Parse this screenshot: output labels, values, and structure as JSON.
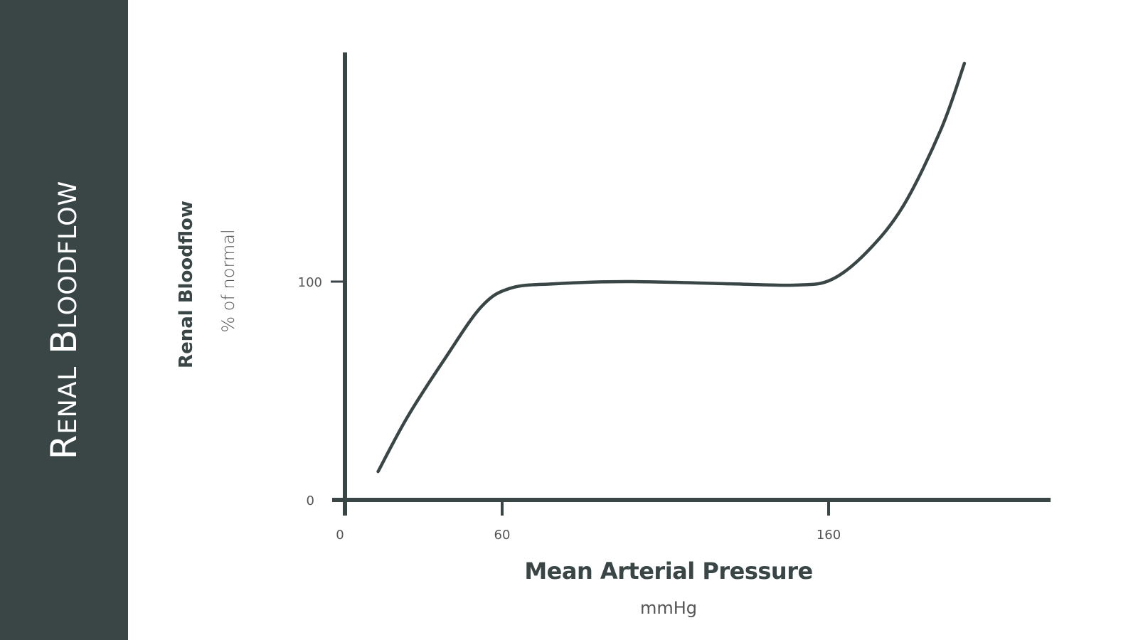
{
  "sidebar": {
    "title": "Renal Bloodflow",
    "color": "#3a4646"
  },
  "chart_data": {
    "type": "line",
    "xlabel": "Mean Arterial Pressure",
    "xunit": "mmHg",
    "ylabel": "Renal Bloodflow",
    "yunit": "% of normal",
    "xticks": [
      0,
      60,
      160
    ],
    "yticks": [
      0,
      100
    ],
    "xlim": [
      0,
      228
    ],
    "ylim": [
      0,
      205
    ],
    "grid": false,
    "line_color": "#3a4646",
    "series": [
      {
        "x": [
          22,
          31,
          42.6,
          53.7,
          62.6,
          76,
          98,
          130,
          150,
          161,
          172,
          183,
          194.5,
          201.6
        ],
        "y": [
          13,
          38,
          65,
          88.6,
          97,
          99,
          100,
          99,
          98.4,
          101,
          114,
          135,
          170,
          200
        ]
      }
    ]
  }
}
